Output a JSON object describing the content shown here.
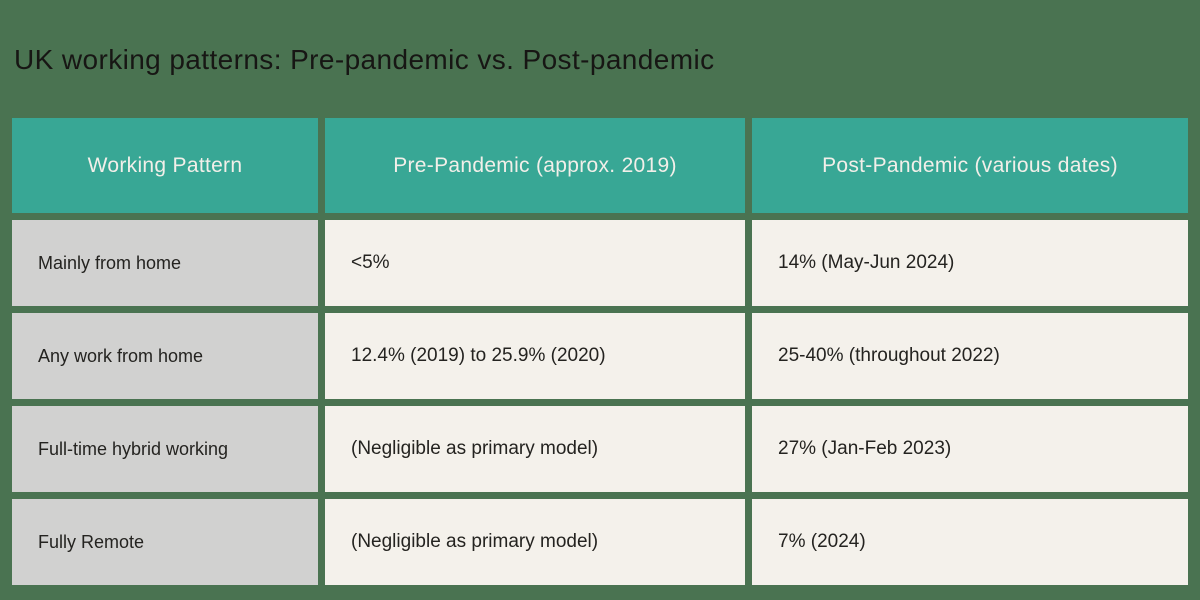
{
  "page": {
    "title": "UK working patterns: Pre-pandemic vs. Post-pandemic"
  },
  "table": {
    "columns": [
      "Working Pattern",
      "Pre-Pandemic (approx. 2019)",
      "Post-Pandemic (various dates)"
    ],
    "rows": [
      {
        "pattern": "Mainly from home",
        "pre": "<5%",
        "post": "14% (May-Jun 2024)"
      },
      {
        "pattern": "Any work from home",
        "pre": "12.4% (2019) to 25.9% (2020)",
        "post": "25-40% (throughout 2022)"
      },
      {
        "pattern": "Full-time hybrid working",
        "pre": "(Negligible as primary model)",
        "post": "27% (Jan-Feb 2023)"
      },
      {
        "pattern": "Fully Remote",
        "pre": "(Negligible as primary model)",
        "post": "7% (2024)"
      }
    ]
  },
  "colors": {
    "background_green": "#4a7351",
    "header_teal": "#38a795",
    "header_text": "#f2efe9",
    "row_label_gray": "#d1d1d0",
    "cell_cream": "#f4f1eb",
    "body_text": "#242320",
    "title_text": "#171614"
  },
  "chart_data": {
    "type": "table",
    "title": "UK working patterns: Pre-pandemic vs. Post-pandemic",
    "columns": [
      "Working Pattern",
      "Pre-Pandemic (approx. 2019)",
      "Post-Pandemic (various dates)"
    ],
    "rows": [
      [
        "Mainly from home",
        "<5%",
        "14% (May-Jun 2024)"
      ],
      [
        "Any work from home",
        "12.4% (2019) to 25.9% (2020)",
        "25-40% (throughout 2022)"
      ],
      [
        "Full-time hybrid working",
        "(Negligible as primary model)",
        "27% (Jan-Feb 2023)"
      ],
      [
        "Fully Remote",
        "(Negligible as primary model)",
        "7% (2024)"
      ]
    ],
    "layout": {
      "header_position": "top",
      "header_alignment": "center",
      "cell_alignment": "left",
      "grid_gap_color": "#4a7351"
    }
  }
}
